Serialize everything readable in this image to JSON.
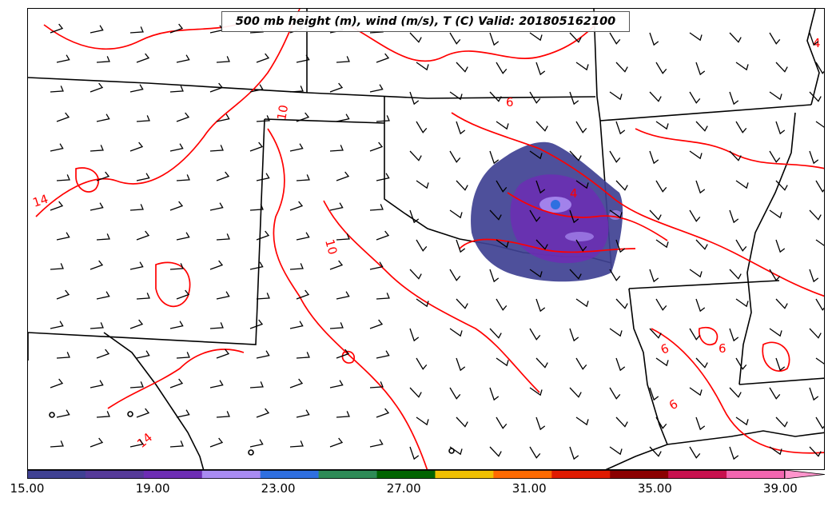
{
  "title": "500 mb height (m), wind (m/s), T (C) Valid: 201805162100",
  "colorbar": {
    "min": 15.0,
    "max": 41.0,
    "colors": [
      "#3f4193",
      "#563a99",
      "#6d2db4",
      "#a98bf2",
      "#2f6fe0",
      "#2e8b57",
      "#006400",
      "#f0c000",
      "#ff6a00",
      "#e01a00",
      "#8b0000",
      "#c8104e",
      "#f265b0",
      "#ff94cc"
    ],
    "tick_labels": [
      "15.00",
      "19.00",
      "23.00",
      "27.00",
      "31.00",
      "35.00",
      "39.00"
    ]
  },
  "contour_labels": [
    {
      "text": "14",
      "color": "#ff0000"
    },
    {
      "text": "10",
      "color": "#ff0000"
    },
    {
      "text": "10",
      "color": "#ff0000"
    },
    {
      "text": "6",
      "color": "#ff0000"
    },
    {
      "text": "6",
      "color": "#ff0000"
    },
    {
      "text": "6",
      "color": "#ff0000"
    },
    {
      "text": "14",
      "color": "#ff0000"
    },
    {
      "text": "4",
      "color": "#ff0000"
    },
    {
      "text": "4",
      "color": "#ff0000"
    },
    {
      "text": "6",
      "color": "#ff0000"
    }
  ],
  "colors": {
    "contour": "#ff0000",
    "border": "#000000",
    "barb": "#000000"
  }
}
